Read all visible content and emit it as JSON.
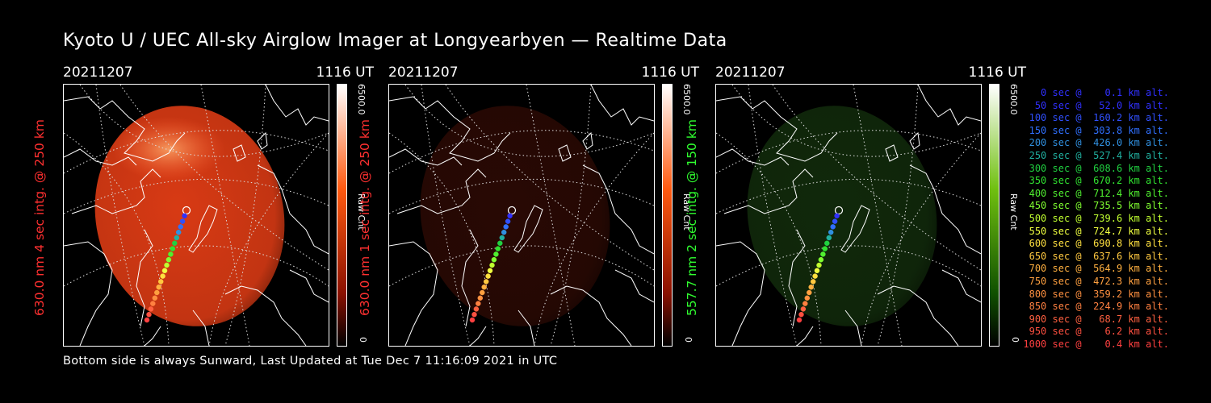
{
  "title": "Kyoto U / UEC All-sky Airglow Imager at Longyearbyen — Realtime Data",
  "footer": "Bottom side is always Sunward, Last Updated at Tue Dec  7 11:16:09 2021 in UTC",
  "panels": [
    {
      "date": "20211207",
      "time": "1116 UT",
      "side_label": "630.0 nm 4 sec intg. @ 250 km",
      "side_color": "#ff3030",
      "cbar_max": "6500.0",
      "cbar_unit": "Raw Cnt",
      "cbar_min": "0",
      "cbar_top_color": "#ffffff",
      "cbar_mid_color": "#ff5a10",
      "cbar_low_color": "#8a1000",
      "glow_color": "#d83a14",
      "glow_intensity": 1.0
    },
    {
      "date": "20211207",
      "time": "1116 UT",
      "side_label": "630.0 nm 1 sec intg. @ 250 km",
      "side_color": "#ff3030",
      "cbar_max": "6500.0",
      "cbar_unit": "Raw Cnt",
      "cbar_min": "0",
      "cbar_top_color": "#ffffff",
      "cbar_mid_color": "#ff5a10",
      "cbar_low_color": "#8a1000",
      "glow_color": "#5a1408",
      "glow_intensity": 0.45
    },
    {
      "date": "20211207",
      "time": "1116 UT",
      "side_label": "557.7 nm 2 sec intg. @ 150 km",
      "side_color": "#30ff30",
      "cbar_max": "6500.0",
      "cbar_unit": "Raw Cnt",
      "cbar_min": "0",
      "cbar_top_color": "#ffffff",
      "cbar_mid_color": "#70c010",
      "cbar_low_color": "#105000",
      "glow_color": "#1e4a14",
      "glow_intensity": 0.55
    }
  ],
  "legend": [
    {
      "text": "   0 sec @    0.1 km alt.",
      "color": "#3030ff"
    },
    {
      "text": "  50 sec @   52.0 km alt.",
      "color": "#3030ff"
    },
    {
      "text": " 100 sec @  160.2 km alt.",
      "color": "#3050ff"
    },
    {
      "text": " 150 sec @  303.8 km alt.",
      "color": "#3070ff"
    },
    {
      "text": " 200 sec @  426.0 km alt.",
      "color": "#3090e0"
    },
    {
      "text": " 250 sec @  527.4 km alt.",
      "color": "#20b0a0"
    },
    {
      "text": " 300 sec @  608.6 km alt.",
      "color": "#20d040"
    },
    {
      "text": " 350 sec @  670.2 km alt.",
      "color": "#30e030"
    },
    {
      "text": " 400 sec @  712.4 km alt.",
      "color": "#50f030"
    },
    {
      "text": " 450 sec @  735.5 km alt.",
      "color": "#80ff30"
    },
    {
      "text": " 500 sec @  739.6 km alt.",
      "color": "#c0ff30"
    },
    {
      "text": " 550 sec @  724.7 km alt.",
      "color": "#f0ff40"
    },
    {
      "text": " 600 sec @  690.8 km alt.",
      "color": "#ffe040"
    },
    {
      "text": " 650 sec @  637.6 km alt.",
      "color": "#ffc840"
    },
    {
      "text": " 700 sec @  564.9 km alt.",
      "color": "#ffb040"
    },
    {
      "text": " 750 sec @  472.3 km alt.",
      "color": "#ffa040"
    },
    {
      "text": " 800 sec @  359.2 km alt.",
      "color": "#ff9040"
    },
    {
      "text": " 850 sec @  224.9 km alt.",
      "color": "#ff8040"
    },
    {
      "text": " 900 sec @   68.7 km alt.",
      "color": "#ff6040"
    },
    {
      "text": " 950 sec @    6.2 km alt.",
      "color": "#ff5040"
    },
    {
      "text": "1000 sec @    0.4 km alt.",
      "color": "#ff4040"
    }
  ]
}
